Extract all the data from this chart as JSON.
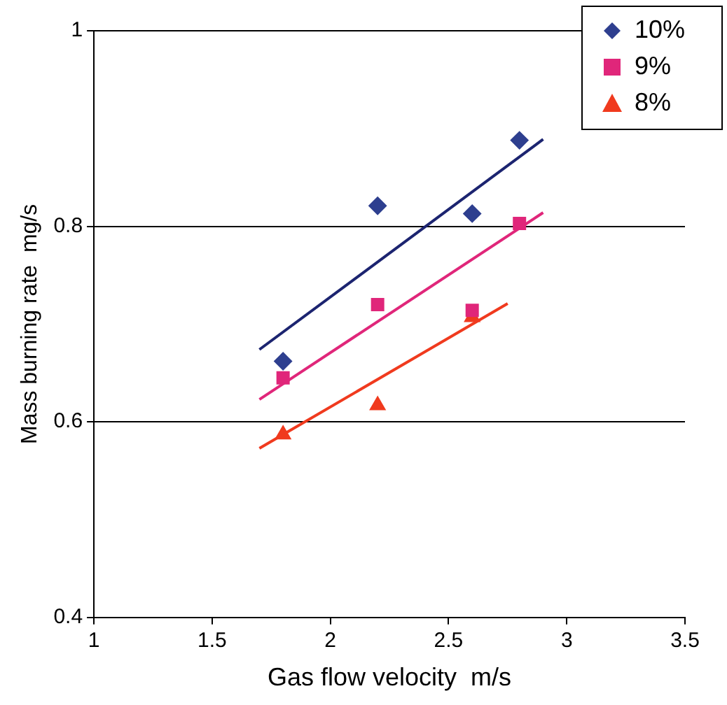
{
  "chart_data": {
    "type": "scatter",
    "xlabel": "Gas flow velocity  m/s",
    "ylabel": "Mass burning rate  mg/s",
    "xlim": [
      1,
      3.5
    ],
    "xticks": [
      1,
      1.5,
      2,
      2.5,
      3,
      3.5
    ],
    "ylim": [
      0.4,
      1
    ],
    "yticks": [
      0.4,
      0.6,
      0.8,
      1
    ],
    "grid": "y",
    "legend": "top right",
    "series": [
      {
        "name": "10%",
        "color": "#2e3f8f",
        "marker": "diamond",
        "x": [
          1.8,
          2.2,
          2.6,
          2.8
        ],
        "values": [
          0.662,
          0.821,
          0.813,
          0.888
        ]
      },
      {
        "name": "9%",
        "color": "#e0267a",
        "marker": "square",
        "x": [
          1.8,
          2.2,
          2.6,
          2.8
        ],
        "values": [
          0.645,
          0.72,
          0.714,
          0.803
        ]
      },
      {
        "name": "8%",
        "color": "#f03a1e",
        "marker": "triangle",
        "x": [
          1.8,
          2.2,
          2.6
        ],
        "values": [
          0.587,
          0.617,
          0.707
        ]
      },
      {
        "type": "line",
        "color": "#1c2470",
        "marker": "none",
        "x": [
          1.7,
          2.9
        ],
        "values": [
          0.674,
          0.889
        ]
      },
      {
        "type": "line",
        "color": "#e0267a",
        "marker": "none",
        "x": [
          1.7,
          2.9
        ],
        "values": [
          0.623,
          0.814
        ]
      },
      {
        "type": "line",
        "color": "#f03a1e",
        "marker": "none",
        "x": [
          1.7,
          2.75
        ],
        "values": [
          0.573,
          0.721
        ]
      }
    ]
  }
}
